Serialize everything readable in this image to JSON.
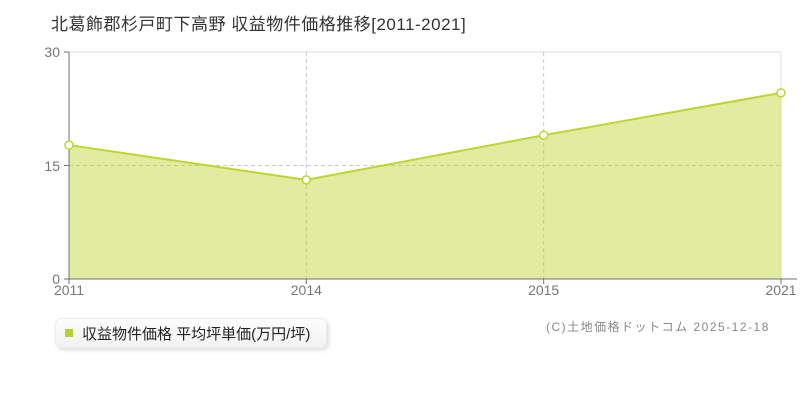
{
  "title": "北葛飾郡杉戸町下高野 収益物件価格推移[2011-2021]",
  "legend": {
    "label": "収益物件価格 平均坪単価(万円/坪)",
    "marker_color": "#b2d22f"
  },
  "copyright": "(C)土地価格ドットコム 2025-12-18",
  "chart_data": {
    "type": "area",
    "title": "北葛飾郡杉戸町下高野 収益物件価格推移[2011-2021]",
    "categories": [
      "2011",
      "2014",
      "2015",
      "2021"
    ],
    "series": [
      {
        "name": "収益物件価格 平均坪単価(万円/坪)",
        "values": [
          17.7,
          13.1,
          19.0,
          24.6
        ]
      }
    ],
    "xlabel": "",
    "ylabel": "万円/坪",
    "ylim": [
      0,
      30
    ],
    "yticks": [
      0,
      15,
      30
    ],
    "grid": {
      "h_dashed_at": [
        15
      ],
      "v_dashed_at": [
        "2014",
        "2015"
      ]
    },
    "legend_position": "bottom-left",
    "colors": {
      "line": "#bdd52f",
      "area_fill": "rgba(189,213,47,0.45)",
      "point_fill": "#ffffff",
      "grid_dashed": "#c9c9c9",
      "plot_border": "#dddddd",
      "axis": "#707070",
      "tick_label": "#777777",
      "title_text": "#333333"
    }
  }
}
